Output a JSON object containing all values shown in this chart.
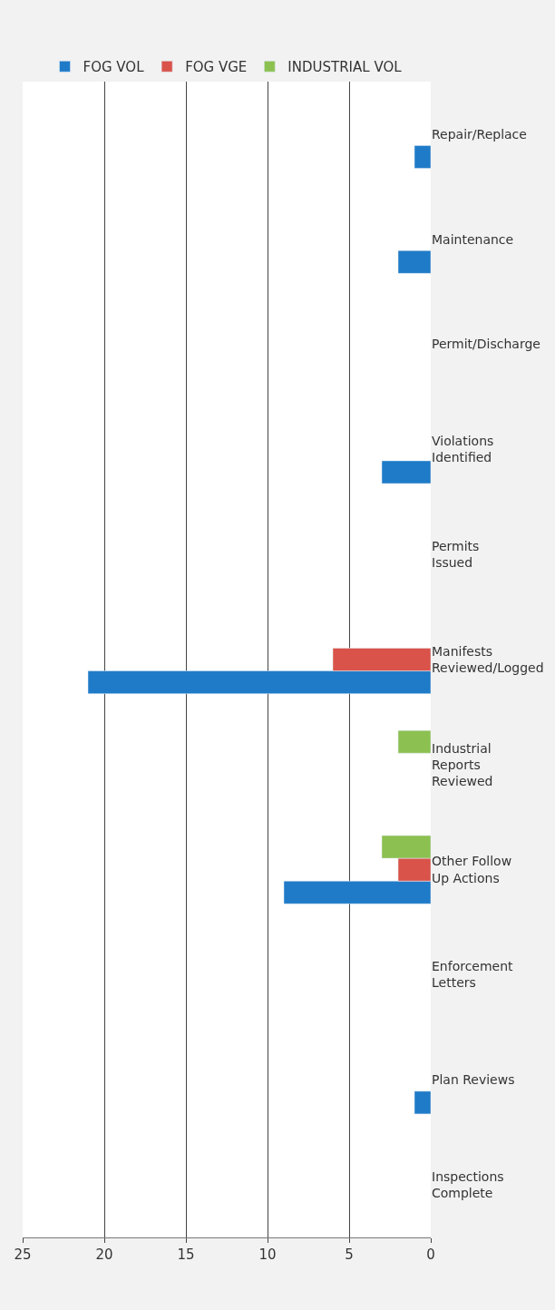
{
  "chart_data": {
    "type": "bar",
    "orientation": "horizontal",
    "categories": [
      "Repair/Replace",
      "Maintenance",
      "Permit/Discharge",
      "Violations Identified",
      "Permits Issued",
      "Manifests Reviewed/Logged",
      "Industrial Reports Reviewed",
      "Other Follow Up Actions",
      "Enforcement Letters",
      "Plan Reviews",
      "Inspections Complete"
    ],
    "series": [
      {
        "name": "FOG VOL",
        "color": "#1f7bc8",
        "values": [
          1,
          2,
          null,
          3,
          null,
          21,
          null,
          9,
          null,
          1,
          null
        ]
      },
      {
        "name": "FOG VGE",
        "color": "#d9534a",
        "values": [
          null,
          null,
          null,
          null,
          null,
          6,
          null,
          2,
          null,
          null,
          null
        ]
      },
      {
        "name": "INDUSTRIAL VOL",
        "color": "#8cc152",
        "values": [
          null,
          null,
          null,
          null,
          null,
          null,
          2,
          3,
          null,
          null,
          null
        ]
      }
    ],
    "xlim": [
      25,
      0
    ],
    "xticks": [
      25,
      20,
      15,
      10,
      5,
      0
    ],
    "grid": "x",
    "legend": "top"
  }
}
